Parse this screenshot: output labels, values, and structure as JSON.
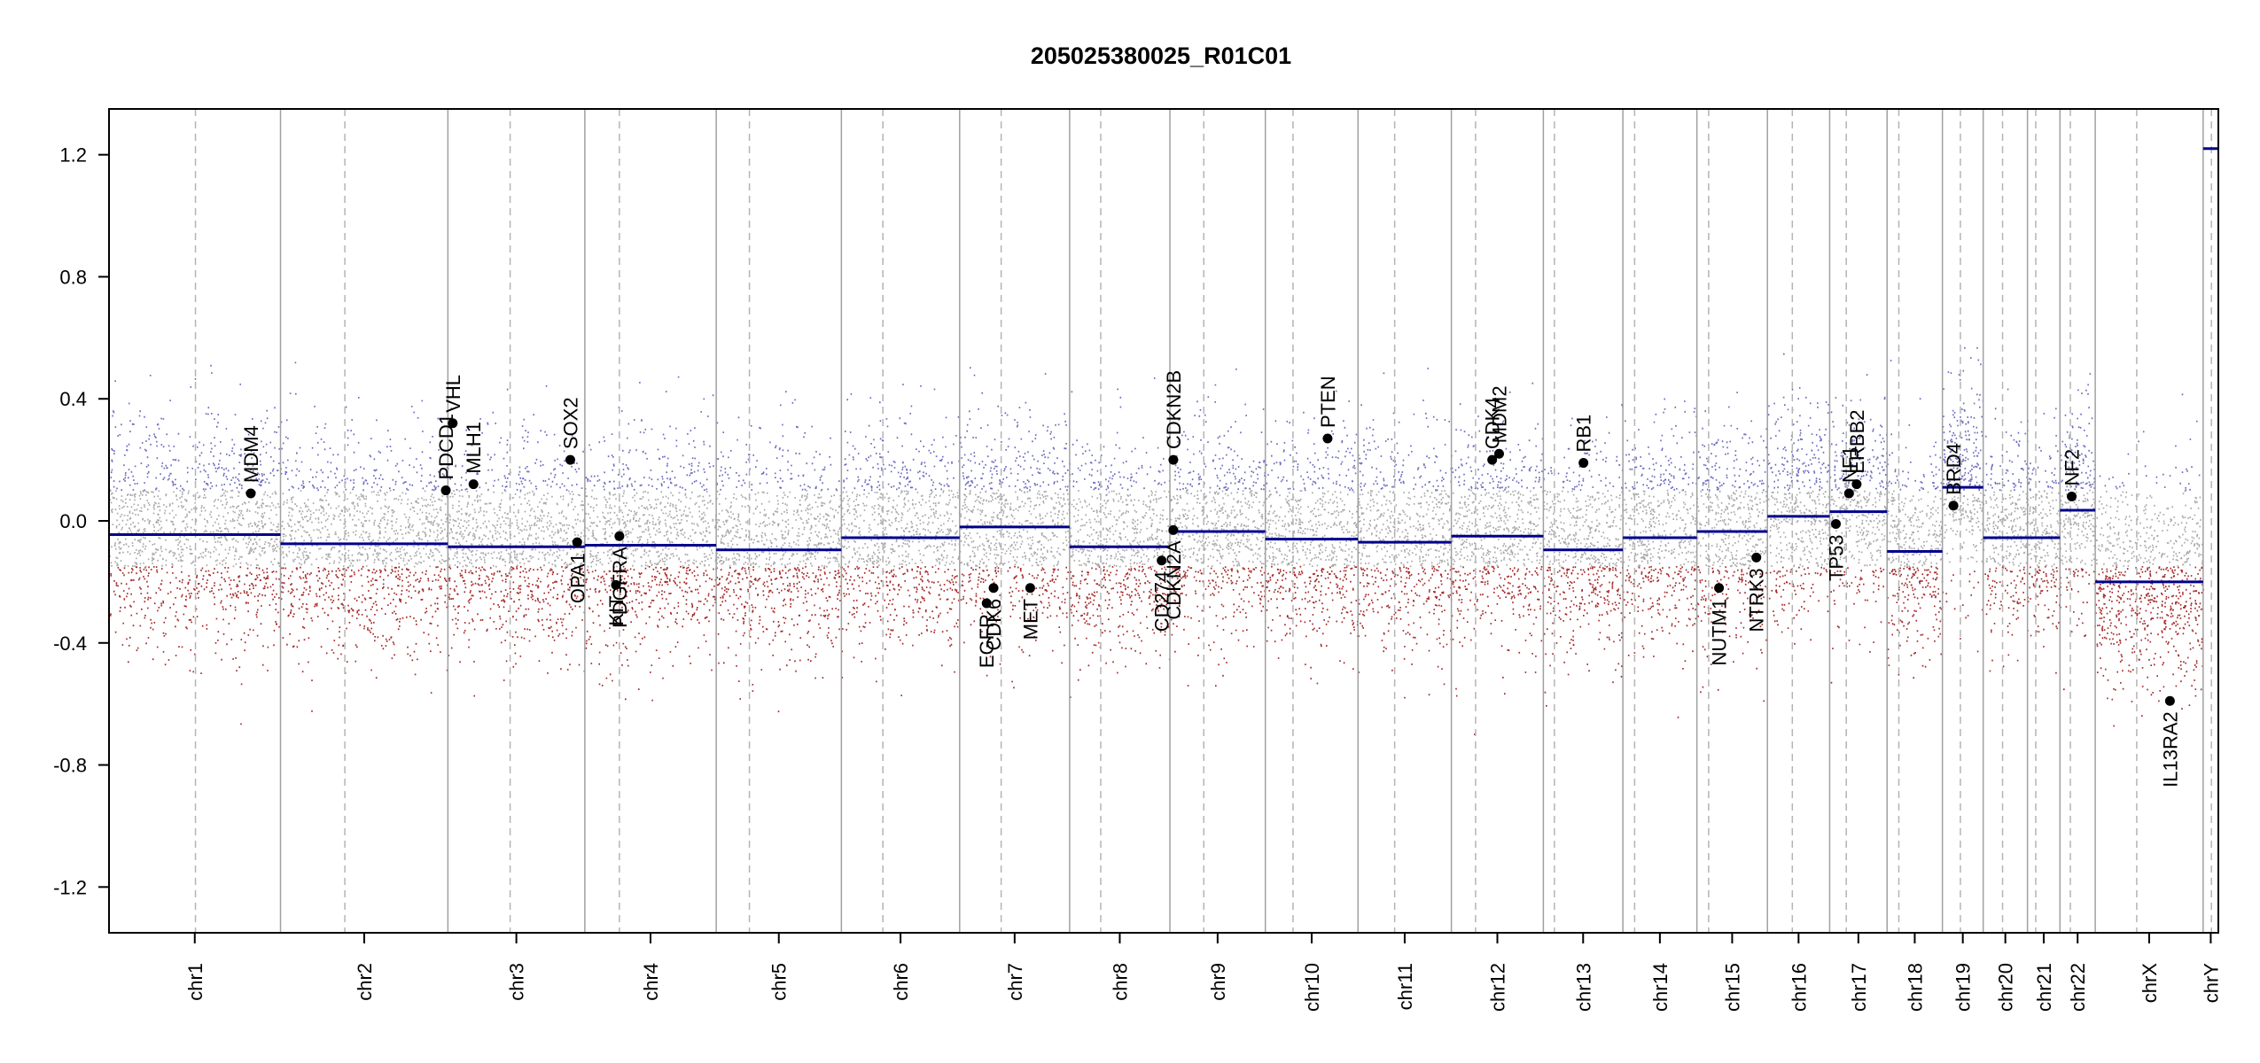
{
  "colors": {
    "segment": "#00008b",
    "gain_points": "#6b6bc0",
    "neutral_points": "#a9a9a9",
    "loss_points": "#a52a2a",
    "boundary": "#a0a0a0",
    "centromere": "#b4b4b4",
    "gene_marker": "#000000"
  },
  "chart_data": {
    "type": "scatter",
    "title": "205025380025_R01C01",
    "xlabel": "",
    "ylabel": "",
    "ylim": [
      -1.35,
      1.35
    ],
    "y_ticks": [
      {
        "value": 1.2,
        "label": "1.2"
      },
      {
        "value": 0.8,
        "label": "0.8"
      },
      {
        "value": 0.4,
        "label": "0.4"
      },
      {
        "value": 0.0,
        "label": "0.0"
      },
      {
        "value": -0.4,
        "label": "-0.4"
      },
      {
        "value": -0.8,
        "label": "-0.8"
      },
      {
        "value": -1.2,
        "label": "-1.2"
      }
    ],
    "x_range": [
      0,
      3050
    ],
    "chromosomes": [
      {
        "name": "chr1",
        "start": 0,
        "end": 248,
        "centromere": 125,
        "segment": -0.045
      },
      {
        "name": "chr2",
        "start": 248,
        "end": 490,
        "centromere": 341,
        "segment": -0.075
      },
      {
        "name": "chr3",
        "start": 490,
        "end": 688,
        "centromere": 580,
        "segment": -0.085
      },
      {
        "name": "chr4",
        "start": 688,
        "end": 878,
        "centromere": 738,
        "segment": -0.08
      },
      {
        "name": "chr5",
        "start": 878,
        "end": 1059,
        "centromere": 926,
        "segment": -0.095
      },
      {
        "name": "chr6",
        "start": 1059,
        "end": 1230,
        "centromere": 1119,
        "segment": -0.055
      },
      {
        "name": "chr7",
        "start": 1230,
        "end": 1389,
        "centromere": 1290,
        "segment": -0.02
      },
      {
        "name": "chr8",
        "start": 1389,
        "end": 1534,
        "centromere": 1434,
        "segment": -0.085
      },
      {
        "name": "chr9",
        "start": 1534,
        "end": 1672,
        "centromere": 1583,
        "segment": -0.035
      },
      {
        "name": "chr10",
        "start": 1672,
        "end": 1806,
        "centromere": 1712,
        "segment": -0.06
      },
      {
        "name": "chr11",
        "start": 1806,
        "end": 1941,
        "centromere": 1859,
        "segment": -0.07
      },
      {
        "name": "chr12",
        "start": 1941,
        "end": 2074,
        "centromere": 1976,
        "segment": -0.05
      },
      {
        "name": "chr13",
        "start": 2074,
        "end": 2189,
        "centromere": 2090,
        "segment": -0.095
      },
      {
        "name": "chr14",
        "start": 2189,
        "end": 2296,
        "centromere": 2206,
        "segment": -0.055
      },
      {
        "name": "chr15",
        "start": 2296,
        "end": 2398,
        "centromere": 2313,
        "segment": -0.035
      },
      {
        "name": "chr16",
        "start": 2398,
        "end": 2488,
        "centromere": 2434,
        "segment": 0.015
      },
      {
        "name": "chr17",
        "start": 2488,
        "end": 2571,
        "centromere": 2512,
        "segment": 0.03
      },
      {
        "name": "chr18",
        "start": 2571,
        "end": 2651,
        "centromere": 2588,
        "segment": -0.1
      },
      {
        "name": "chr19",
        "start": 2651,
        "end": 2710,
        "centromere": 2677,
        "segment": 0.11
      },
      {
        "name": "chr20",
        "start": 2710,
        "end": 2774,
        "centromere": 2738,
        "segment": -0.055
      },
      {
        "name": "chr21",
        "start": 2774,
        "end": 2821,
        "centromere": 2786,
        "segment": -0.055
      },
      {
        "name": "chr22",
        "start": 2821,
        "end": 2872,
        "centromere": 2836,
        "segment": 0.035
      },
      {
        "name": "chrX",
        "start": 2872,
        "end": 3028,
        "centromere": 2932,
        "segment": -0.2
      },
      {
        "name": "chrY",
        "start": 3028,
        "end": 3050,
        "centromere": 3040,
        "segment": 1.22
      }
    ],
    "genes": [
      {
        "name": "MDM4",
        "x": 205,
        "y": 0.09,
        "label": "above"
      },
      {
        "name": "PDCD1",
        "x": 487,
        "y": 0.1,
        "label": "above"
      },
      {
        "name": "VHL",
        "x": 497,
        "y": 0.32,
        "label": "above"
      },
      {
        "name": "MLH1",
        "x": 527,
        "y": 0.12,
        "label": "above"
      },
      {
        "name": "SOX2",
        "x": 667,
        "y": 0.2,
        "label": "above"
      },
      {
        "name": "OPA1",
        "x": 677,
        "y": -0.07,
        "label": "below"
      },
      {
        "name": "PDGFRA",
        "x": 738,
        "y": -0.05,
        "label": "below"
      },
      {
        "name": "KIT",
        "x": 733,
        "y": -0.21,
        "label": "below"
      },
      {
        "name": "EGFR",
        "x": 1269,
        "y": -0.27,
        "label": "below"
      },
      {
        "name": "CDK6",
        "x": 1279,
        "y": -0.22,
        "label": "below"
      },
      {
        "name": "MET",
        "x": 1332,
        "y": -0.22,
        "label": "below"
      },
      {
        "name": "CD274",
        "x": 1522,
        "y": -0.13,
        "label": "below"
      },
      {
        "name": "CDKN2A",
        "x": 1539,
        "y": -0.03,
        "label": "below"
      },
      {
        "name": "CDKN2B",
        "x": 1539,
        "y": 0.2,
        "label": "above"
      },
      {
        "name": "PTEN",
        "x": 1762,
        "y": 0.27,
        "label": "above"
      },
      {
        "name": "CDK4",
        "x": 2000,
        "y": 0.2,
        "label": "above"
      },
      {
        "name": "MDM2",
        "x": 2010,
        "y": 0.22,
        "label": "above"
      },
      {
        "name": "RB1",
        "x": 2132,
        "y": 0.19,
        "label": "above"
      },
      {
        "name": "NUTM1",
        "x": 2328,
        "y": -0.22,
        "label": "below"
      },
      {
        "name": "NTRK3",
        "x": 2382,
        "y": -0.12,
        "label": "below"
      },
      {
        "name": "TP53",
        "x": 2497,
        "y": -0.01,
        "label": "below"
      },
      {
        "name": "NF1",
        "x": 2516,
        "y": 0.09,
        "label": "above"
      },
      {
        "name": "ERBB2",
        "x": 2527,
        "y": 0.12,
        "label": "above"
      },
      {
        "name": "BRD4",
        "x": 2667,
        "y": 0.05,
        "label": "above"
      },
      {
        "name": "NF2",
        "x": 2838,
        "y": 0.08,
        "label": "above"
      },
      {
        "name": "IL13RA2",
        "x": 2980,
        "y": -0.59,
        "label": "below"
      }
    ],
    "grid": false,
    "legend": "none"
  }
}
